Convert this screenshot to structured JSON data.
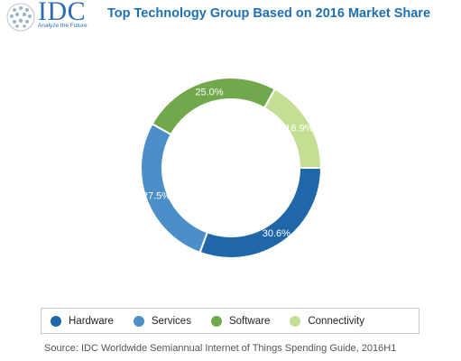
{
  "brand": {
    "name": "IDC",
    "tagline": "Analyze the Future",
    "color": "#2a6db5"
  },
  "title": "Top Technology Group Based on 2016 Market Share",
  "source": "Source: IDC Worldwide Semiannual Internet of Things Spending Guide, 2016H1",
  "chart_data": {
    "type": "pie",
    "variant": "donut",
    "title": "Top Technology Group Based on 2016 Market Share",
    "legend_position": "bottom",
    "slices": [
      {
        "name": "Hardware",
        "value": 30.6,
        "label": "30.6%",
        "color": "#1f67a8"
      },
      {
        "name": "Services",
        "value": 27.5,
        "label": "27.5%",
        "color": "#4b8ec8"
      },
      {
        "name": "Software",
        "value": 25.0,
        "label": "25.0%",
        "color": "#72a84c"
      },
      {
        "name": "Connectivity",
        "value": 16.9,
        "label": "16.9%",
        "color": "#c4df93"
      }
    ]
  }
}
